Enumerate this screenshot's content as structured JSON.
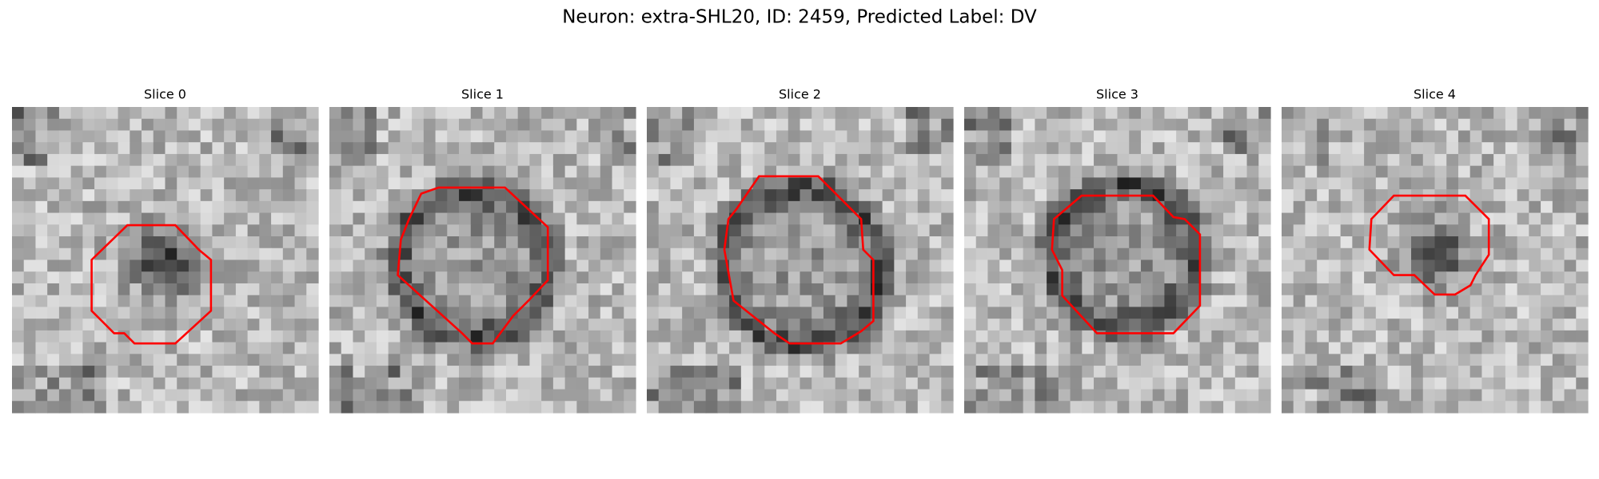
{
  "title": "Neuron: extra-SHL20, ID: 2459, Predicted Label: DV",
  "panels": [
    {
      "title": "Slice 0"
    },
    {
      "title": "Slice 1"
    },
    {
      "title": "Slice 2"
    },
    {
      "title": "Slice 3"
    },
    {
      "title": "Slice 4"
    }
  ]
}
